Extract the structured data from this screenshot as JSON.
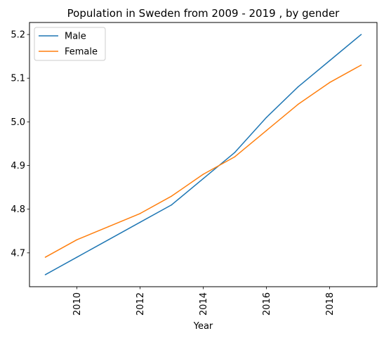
{
  "chart_data": {
    "type": "line",
    "title": "Population in Sweden from 2009 - 2019 , by gender",
    "xlabel": "Year",
    "ylabel": "",
    "x": [
      2009,
      2010,
      2011,
      2012,
      2013,
      2014,
      2015,
      2016,
      2017,
      2018,
      2019
    ],
    "series": [
      {
        "name": "Male",
        "color": "#1f77b4",
        "values": [
          4.65,
          4.69,
          4.73,
          4.77,
          4.81,
          4.87,
          4.93,
          5.01,
          5.08,
          5.14,
          5.2
        ]
      },
      {
        "name": "Female",
        "color": "#ff7f0e",
        "values": [
          4.69,
          4.73,
          4.76,
          4.79,
          4.83,
          4.88,
          4.92,
          4.98,
          5.04,
          5.09,
          5.13
        ]
      }
    ],
    "xlim": [
      2008.5,
      2019.5
    ],
    "ylim": [
      4.6225,
      5.2275
    ],
    "xticks": [
      2010,
      2012,
      2014,
      2016,
      2018
    ],
    "xtick_labels": [
      "2010",
      "2012",
      "2014",
      "2016",
      "2018"
    ],
    "yticks": [
      4.7,
      4.8,
      4.9,
      5.0,
      5.1,
      5.2
    ],
    "ytick_labels": [
      "4.7",
      "4.8",
      "4.9",
      "5.0",
      "5.1",
      "5.2"
    ],
    "xtick_rotation": 90,
    "grid": false,
    "legend_position": "top-left"
  }
}
